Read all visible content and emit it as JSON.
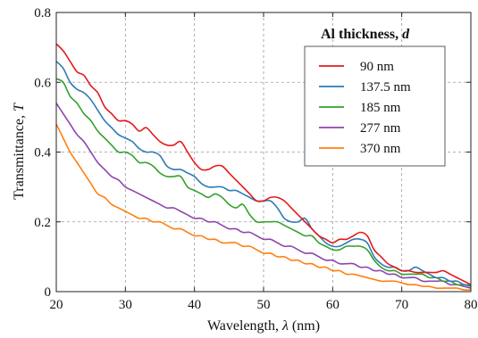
{
  "chart_data": {
    "type": "line",
    "xlabel_prefix": "Wavelength, ",
    "xlabel_symbol": "λ",
    "xlabel_suffix": " (nm)",
    "ylabel_prefix": "Transmittance, ",
    "ylabel_symbol": "T",
    "xlim": [
      20,
      80
    ],
    "ylim": [
      0,
      0.8
    ],
    "xticks": [
      "20",
      "30",
      "40",
      "50",
      "60",
      "70",
      "80"
    ],
    "yticks": [
      "0",
      "0.2",
      "0.4",
      "0.6",
      "0.8"
    ],
    "grid": true,
    "legend": {
      "title_prefix": "Al thickness, ",
      "title_symbol": "d",
      "position": "top-right"
    },
    "x": [
      20,
      21,
      22,
      23,
      24,
      25,
      26,
      27,
      28,
      29,
      30,
      31,
      32,
      33,
      34,
      35,
      36,
      37,
      38,
      39,
      40,
      41,
      42,
      43,
      44,
      45,
      46,
      47,
      48,
      49,
      50,
      51,
      52,
      53,
      54,
      55,
      56,
      57,
      58,
      59,
      60,
      61,
      62,
      63,
      64,
      65,
      66,
      67,
      68,
      69,
      70,
      71,
      72,
      73,
      74,
      75,
      76,
      77,
      78,
      79,
      80
    ],
    "series": [
      {
        "name": "90 nm",
        "color": "#e31a1c",
        "values": [
          0.71,
          0.69,
          0.66,
          0.63,
          0.62,
          0.59,
          0.57,
          0.53,
          0.51,
          0.49,
          0.49,
          0.48,
          0.46,
          0.47,
          0.45,
          0.43,
          0.42,
          0.42,
          0.43,
          0.4,
          0.37,
          0.35,
          0.35,
          0.36,
          0.36,
          0.34,
          0.32,
          0.3,
          0.28,
          0.26,
          0.26,
          0.27,
          0.27,
          0.26,
          0.24,
          0.22,
          0.2,
          0.18,
          0.16,
          0.15,
          0.14,
          0.15,
          0.15,
          0.16,
          0.17,
          0.16,
          0.12,
          0.1,
          0.08,
          0.07,
          0.06,
          0.06,
          0.055,
          0.055,
          0.055,
          0.055,
          0.06,
          0.05,
          0.04,
          0.03,
          0.02
        ]
      },
      {
        "name": "137.5 nm",
        "color": "#2c7bb6",
        "values": [
          0.66,
          0.64,
          0.6,
          0.58,
          0.57,
          0.55,
          0.52,
          0.49,
          0.47,
          0.45,
          0.44,
          0.43,
          0.41,
          0.4,
          0.4,
          0.39,
          0.36,
          0.35,
          0.35,
          0.34,
          0.33,
          0.31,
          0.3,
          0.3,
          0.3,
          0.29,
          0.29,
          0.28,
          0.27,
          0.26,
          0.26,
          0.26,
          0.24,
          0.21,
          0.2,
          0.2,
          0.21,
          0.18,
          0.16,
          0.14,
          0.13,
          0.13,
          0.14,
          0.15,
          0.15,
          0.14,
          0.1,
          0.08,
          0.07,
          0.07,
          0.06,
          0.06,
          0.07,
          0.06,
          0.05,
          0.04,
          0.04,
          0.03,
          0.03,
          0.02,
          0.02
        ]
      },
      {
        "name": "185 nm",
        "color": "#33a02c",
        "values": [
          0.61,
          0.6,
          0.56,
          0.54,
          0.51,
          0.49,
          0.46,
          0.44,
          0.42,
          0.4,
          0.4,
          0.39,
          0.37,
          0.37,
          0.36,
          0.34,
          0.33,
          0.33,
          0.33,
          0.3,
          0.29,
          0.28,
          0.27,
          0.28,
          0.27,
          0.25,
          0.24,
          0.25,
          0.22,
          0.2,
          0.2,
          0.2,
          0.2,
          0.19,
          0.18,
          0.17,
          0.16,
          0.16,
          0.14,
          0.13,
          0.12,
          0.12,
          0.13,
          0.13,
          0.13,
          0.12,
          0.09,
          0.07,
          0.06,
          0.06,
          0.05,
          0.05,
          0.05,
          0.05,
          0.04,
          0.04,
          0.03,
          0.03,
          0.02,
          0.02,
          0.015
        ]
      },
      {
        "name": "277 nm",
        "color": "#8e44ad",
        "values": [
          0.54,
          0.51,
          0.48,
          0.45,
          0.43,
          0.4,
          0.37,
          0.35,
          0.33,
          0.32,
          0.3,
          0.29,
          0.28,
          0.27,
          0.26,
          0.25,
          0.24,
          0.24,
          0.23,
          0.22,
          0.21,
          0.21,
          0.2,
          0.2,
          0.19,
          0.18,
          0.18,
          0.17,
          0.17,
          0.16,
          0.15,
          0.15,
          0.14,
          0.13,
          0.13,
          0.12,
          0.11,
          0.11,
          0.1,
          0.09,
          0.09,
          0.08,
          0.08,
          0.08,
          0.07,
          0.07,
          0.06,
          0.06,
          0.05,
          0.05,
          0.04,
          0.04,
          0.04,
          0.03,
          0.03,
          0.03,
          0.03,
          0.02,
          0.02,
          0.015,
          0.01
        ]
      },
      {
        "name": "370 nm",
        "color": "#ff7f0e",
        "values": [
          0.48,
          0.44,
          0.4,
          0.37,
          0.34,
          0.31,
          0.28,
          0.27,
          0.25,
          0.24,
          0.23,
          0.22,
          0.21,
          0.21,
          0.2,
          0.2,
          0.19,
          0.18,
          0.18,
          0.17,
          0.16,
          0.16,
          0.15,
          0.15,
          0.14,
          0.14,
          0.14,
          0.13,
          0.13,
          0.12,
          0.11,
          0.11,
          0.1,
          0.1,
          0.09,
          0.09,
          0.08,
          0.08,
          0.07,
          0.07,
          0.06,
          0.06,
          0.05,
          0.05,
          0.045,
          0.04,
          0.035,
          0.03,
          0.03,
          0.03,
          0.025,
          0.02,
          0.02,
          0.015,
          0.015,
          0.01,
          0.01,
          0.01,
          0.01,
          0.005,
          0.005
        ]
      }
    ]
  }
}
